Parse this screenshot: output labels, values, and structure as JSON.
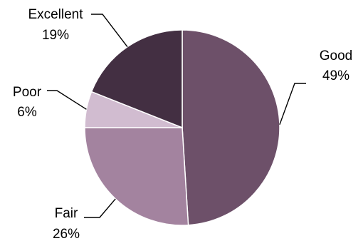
{
  "chart_data": {
    "type": "pie",
    "title": "",
    "slices": [
      {
        "name": "Good",
        "value": 49,
        "label": "49%",
        "color": "#6d5069"
      },
      {
        "name": "Fair",
        "value": 26,
        "label": "26%",
        "color": "#a3839f"
      },
      {
        "name": "Poor",
        "value": 6,
        "label": "6%",
        "color": "#d1bcd0"
      },
      {
        "name": "Excellent",
        "value": 19,
        "label": "19%",
        "color": "#432f42"
      }
    ],
    "start_angle_deg": 0,
    "direction": "clockwise",
    "legend": "none"
  }
}
